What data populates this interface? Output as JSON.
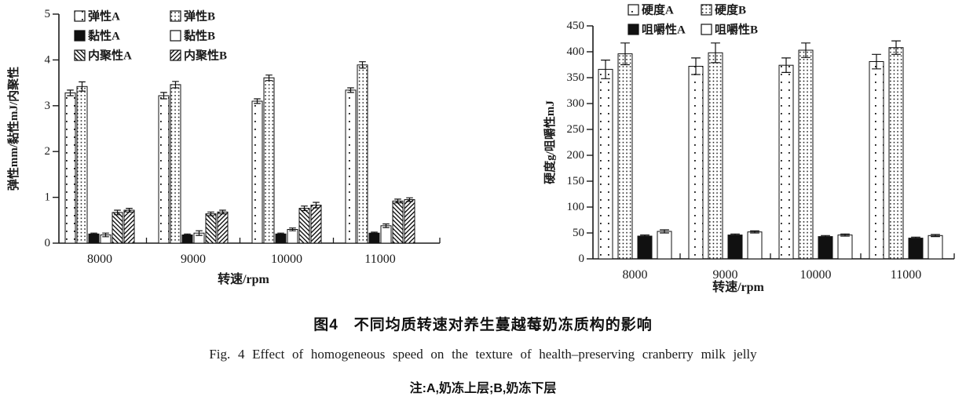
{
  "figure": {
    "caption_zh": "图4　不同均质转速对养生蔓越莓奶冻质构的影响",
    "caption_en": "Fig. 4   Effect of homogeneous speed on the texture of health–preserving cranberry milk jelly",
    "note": "注:A,奶冻上层;B,奶冻下层"
  },
  "colors": {
    "ink": "#1a1a1a",
    "background": "#ffffff"
  },
  "chart_data": [
    {
      "type": "bar",
      "title": "",
      "xlabel": "转速/rpm",
      "ylabel": "弹性mm/黏性mJ/内聚性",
      "ylim": [
        0,
        5
      ],
      "ytick_step": 1,
      "grid": false,
      "legend_position": "top-left-inside",
      "categories": [
        "8000",
        "9000",
        "10000",
        "11000"
      ],
      "series": [
        {
          "name": "弹性A",
          "pattern": "dots-sparse",
          "values": [
            3.28,
            3.22,
            3.1,
            3.34
          ],
          "errors": [
            0.06,
            0.07,
            0.05,
            0.05
          ]
        },
        {
          "name": "弹性B",
          "pattern": "dots-dense",
          "values": [
            3.42,
            3.46,
            3.61,
            3.89
          ],
          "errors": [
            0.1,
            0.07,
            0.06,
            0.07
          ]
        },
        {
          "name": "黏性A",
          "pattern": "solid-black",
          "values": [
            0.2,
            0.18,
            0.2,
            0.22
          ],
          "errors": [
            0.02,
            0.02,
            0.02,
            0.02
          ]
        },
        {
          "name": "黏性B",
          "pattern": "open-white",
          "values": [
            0.18,
            0.22,
            0.3,
            0.38
          ],
          "errors": [
            0.04,
            0.05,
            0.03,
            0.04
          ]
        },
        {
          "name": "内聚性A",
          "pattern": "hatch-back",
          "values": [
            0.67,
            0.64,
            0.76,
            0.92
          ],
          "errors": [
            0.05,
            0.04,
            0.05,
            0.04
          ]
        },
        {
          "name": "内聚性B",
          "pattern": "hatch-fwd",
          "values": [
            0.72,
            0.68,
            0.83,
            0.95
          ],
          "errors": [
            0.04,
            0.04,
            0.06,
            0.04
          ]
        }
      ]
    },
    {
      "type": "bar",
      "title": "",
      "xlabel": "转速/rpm",
      "ylabel": "硬度g/咀嚼性mJ",
      "ylim": [
        0,
        450
      ],
      "ytick_step": 50,
      "grid": false,
      "legend_position": "top-center-inside",
      "categories": [
        "8000",
        "9000",
        "10000",
        "11000"
      ],
      "series": [
        {
          "name": "硬度A",
          "pattern": "dots-sparse",
          "values": [
            366,
            372,
            374,
            381
          ],
          "errors": [
            18,
            16,
            14,
            14
          ]
        },
        {
          "name": "硬度B",
          "pattern": "dots-dense",
          "values": [
            396,
            398,
            403,
            408
          ],
          "errors": [
            21,
            19,
            14,
            13
          ]
        },
        {
          "name": "咀嚼性A",
          "pattern": "solid-black",
          "values": [
            44,
            46,
            43,
            40
          ],
          "errors": [
            2,
            2,
            2,
            2
          ]
        },
        {
          "name": "咀嚼性B",
          "pattern": "open-white",
          "values": [
            53,
            52,
            46,
            45
          ],
          "errors": [
            3,
            2,
            2,
            2
          ]
        }
      ]
    }
  ]
}
